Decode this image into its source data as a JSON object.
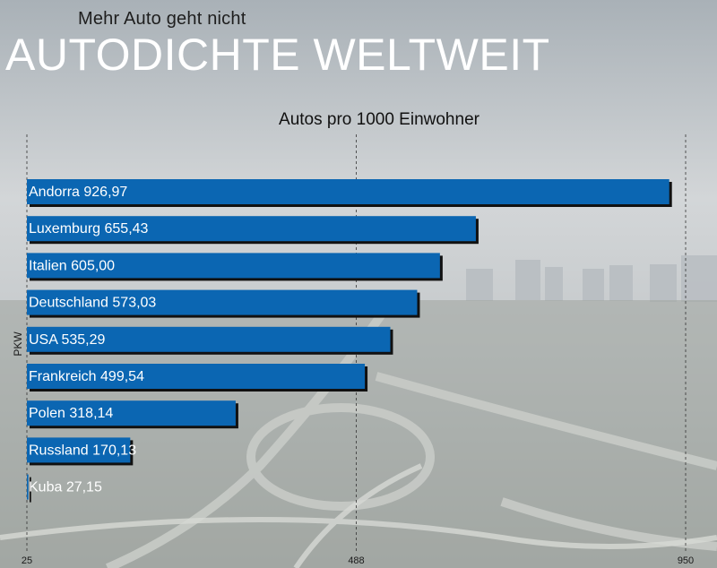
{
  "header": {
    "subtitle": "Mehr Auto geht nicht",
    "title": "AUTODICHTE WELTWEIT"
  },
  "colors": {
    "bar": "#0b66b2",
    "bar_shadow": "#111111",
    "title": "#ffffff"
  },
  "chart_data": {
    "type": "bar",
    "orientation": "horizontal",
    "title": "Autos pro 1000 Einwohner",
    "ylabel": "PKW",
    "xlim": [
      25,
      950
    ],
    "xticks": [
      "25",
      "488",
      "950"
    ],
    "grid": true,
    "categories": [
      "Andorra",
      "Luxemburg",
      "Italien",
      "Deutschland",
      "USA",
      "Frankreich",
      "Polen",
      "Russland",
      "Kuba"
    ],
    "values": [
      926.97,
      655.43,
      605.0,
      573.03,
      535.29,
      499.54,
      318.14,
      170.13,
      27.15
    ],
    "labels": [
      "Andorra 926,97",
      "Luxemburg 655,43",
      "Italien 605,00",
      "Deutschland 573,03",
      "USA 535,29",
      "Frankreich 499,54",
      "Polen 318,14",
      "Russland 170,13",
      "Kuba 27,15"
    ]
  }
}
